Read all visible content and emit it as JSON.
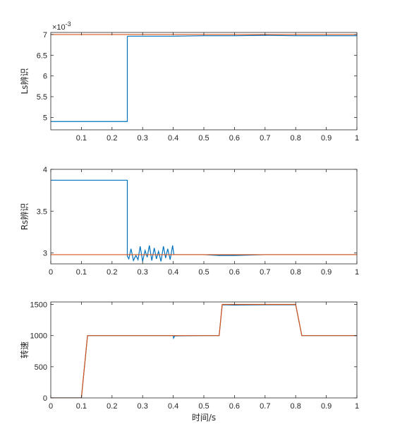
{
  "colors": {
    "identified": "#0072BD",
    "reference": "#D95319",
    "axis": "#262626"
  },
  "chart_data": [
    {
      "type": "line",
      "ylabel": "Ls辨识",
      "xlabel": "",
      "exponent_label": "×10",
      "exponent_power": "-3",
      "xlim": [
        0,
        1
      ],
      "ylim": [
        4.7,
        7.05
      ],
      "xticks": [
        0.1,
        0.2,
        0.3,
        0.4,
        0.5,
        0.6,
        0.7,
        0.8,
        0.9,
        1
      ],
      "xtick_labels": [
        "0.1",
        "0.2",
        "0.3",
        "0.4",
        "0.5",
        "0.6",
        "0.7",
        "0.8",
        "0.9",
        "1"
      ],
      "yticks": [
        5,
        5.5,
        6,
        6.5,
        7
      ],
      "ytick_labels": [
        "5",
        "5.5",
        "6",
        "6.5",
        "7"
      ],
      "grid": false,
      "series": [
        {
          "x": [
            0,
            0.25,
            0.25,
            0.252,
            0.3,
            0.4,
            0.5,
            0.6,
            0.7,
            0.8,
            0.9,
            1
          ],
          "y": [
            4.9,
            4.9,
            6.95,
            6.96,
            6.96,
            6.96,
            6.97,
            6.97,
            6.98,
            6.97,
            6.97,
            6.97
          ]
        },
        {
          "x": [
            0,
            1
          ],
          "y": [
            7.0,
            7.0
          ]
        }
      ]
    },
    {
      "type": "line",
      "ylabel": "Rs辨识",
      "xlabel": "",
      "xlim": [
        0,
        1
      ],
      "ylim": [
        2.87,
        4.0
      ],
      "xticks": [
        0,
        0.1,
        0.2,
        0.3,
        0.4,
        0.5,
        0.6,
        0.7,
        0.8,
        0.9,
        1
      ],
      "xtick_labels": [
        "0",
        "0.1",
        "0.2",
        "0.3",
        "0.4",
        "0.5",
        "0.6",
        "0.7",
        "0.8",
        "0.9",
        "1"
      ],
      "yticks": [
        3,
        3.5,
        4
      ],
      "ytick_labels": [
        "3",
        "3.5",
        "4"
      ],
      "grid": false,
      "series": [
        {
          "x": [
            0,
            0.25,
            0.25,
            0.255,
            0.262,
            0.27,
            0.278,
            0.285,
            0.292,
            0.3,
            0.308,
            0.315,
            0.322,
            0.33,
            0.338,
            0.345,
            0.352,
            0.36,
            0.368,
            0.375,
            0.382,
            0.39,
            0.398,
            0.402,
            0.5,
            0.55,
            0.6,
            0.7,
            0.8,
            0.9,
            1
          ],
          "y": [
            3.87,
            3.87,
            2.96,
            2.93,
            3.05,
            2.91,
            2.97,
            2.92,
            3.08,
            2.9,
            3.03,
            2.95,
            3.09,
            2.91,
            3.06,
            2.93,
            3.02,
            2.9,
            3.08,
            2.94,
            3.05,
            2.92,
            3.09,
            2.98,
            2.98,
            2.97,
            2.97,
            2.98,
            2.98,
            2.98,
            2.98
          ]
        },
        {
          "x": [
            0,
            1
          ],
          "y": [
            2.98,
            2.98
          ]
        }
      ]
    },
    {
      "type": "line",
      "ylabel": "转速",
      "xlabel": "时间/s",
      "xlim": [
        0,
        1
      ],
      "ylim": [
        0,
        1540
      ],
      "xticks": [
        0,
        0.1,
        0.2,
        0.3,
        0.4,
        0.5,
        0.6,
        0.7,
        0.8,
        0.9,
        1
      ],
      "xtick_labels": [
        "0",
        "0.1",
        "0.2",
        "0.3",
        "0.4",
        "0.5",
        "0.6",
        "0.7",
        "0.8",
        "0.9",
        "1"
      ],
      "yticks": [
        0,
        500,
        1000,
        1500
      ],
      "ytick_labels": [
        "0",
        "500",
        "1000",
        "1500"
      ],
      "grid": false,
      "series": [
        {
          "x": [
            0,
            0.1,
            0.12,
            0.2,
            0.3,
            0.4,
            0.401,
            0.405,
            0.5,
            0.55,
            0.56,
            0.6,
            0.7,
            0.8,
            0.82,
            0.9,
            1
          ],
          "y": [
            0,
            0,
            1000,
            1000,
            1000,
            1000,
            960,
            995,
            1000,
            1000,
            1495,
            1490,
            1495,
            1495,
            1000,
            1000,
            1000
          ]
        },
        {
          "x": [
            0,
            0.1,
            0.12,
            0.55,
            0.56,
            0.8,
            0.82,
            1
          ],
          "y": [
            0,
            0,
            1000,
            1000,
            1500,
            1500,
            1000,
            1000
          ]
        }
      ]
    }
  ]
}
